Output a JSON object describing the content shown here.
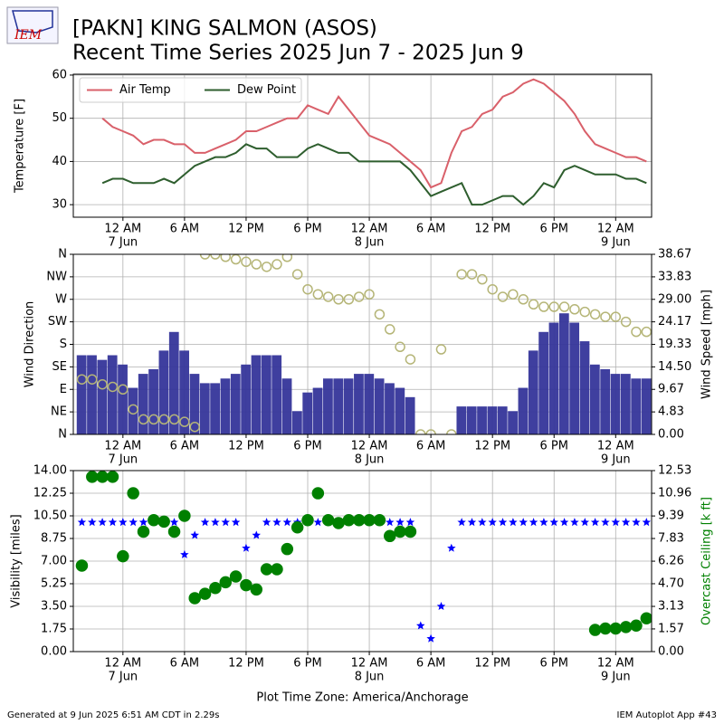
{
  "header": {
    "title": "[PAKN] KING SALMON (ASOS)",
    "subtitle": "Recent Time Series 2025 Jun 7 - 2025 Jun 9",
    "logo": "IEM"
  },
  "footer": {
    "left": "Generated at 9 Jun 2025 6:51 AM CDT in 2.29s",
    "right": "IEM Autoplot App #43"
  },
  "chart_data": [
    {
      "type": "line",
      "ylabel": "Temperature [F]",
      "grid": true,
      "legend": "upper left",
      "xlim": [
        "2025-06-06 19:10",
        "2025-06-09 03:30"
      ],
      "xticks": [
        {
          "value": "2025-06-07 00:00",
          "label": "12 AM"
        },
        {
          "value": "2025-06-07 06:00",
          "label": "6 AM"
        },
        {
          "value": "2025-06-07 12:00",
          "label": "12 PM"
        },
        {
          "value": "2025-06-07 18:00",
          "label": "6 PM"
        },
        {
          "value": "2025-06-08 00:00",
          "label": "12 AM"
        },
        {
          "value": "2025-06-08 06:00",
          "label": "6 AM"
        },
        {
          "value": "2025-06-08 12:00",
          "label": "12 PM"
        },
        {
          "value": "2025-06-08 18:00",
          "label": "6 PM"
        },
        {
          "value": "2025-06-09 00:00",
          "label": "12 AM"
        }
      ],
      "xtick_dates": [
        {
          "value": "2025-06-07 00:00",
          "label": "7 Jun"
        },
        {
          "value": "2025-06-08 00:00",
          "label": "8 Jun"
        },
        {
          "value": "2025-06-09 00:00",
          "label": "9 Jun"
        }
      ],
      "ylim": [
        27.1,
        60.2
      ],
      "yticks": [
        30,
        40,
        50,
        60
      ],
      "x": [
        "2025-06-06 22:00",
        "2025-06-06 23:00",
        "2025-06-07 00:00",
        "2025-06-07 01:00",
        "2025-06-07 02:00",
        "2025-06-07 03:00",
        "2025-06-07 04:00",
        "2025-06-07 05:00",
        "2025-06-07 06:00",
        "2025-06-07 07:00",
        "2025-06-07 08:00",
        "2025-06-07 09:00",
        "2025-06-07 10:00",
        "2025-06-07 11:00",
        "2025-06-07 12:00",
        "2025-06-07 13:00",
        "2025-06-07 14:00",
        "2025-06-07 15:00",
        "2025-06-07 16:00",
        "2025-06-07 17:00",
        "2025-06-07 18:00",
        "2025-06-07 19:00",
        "2025-06-07 20:00",
        "2025-06-07 21:00",
        "2025-06-07 22:00",
        "2025-06-07 23:00",
        "2025-06-08 00:00",
        "2025-06-08 01:00",
        "2025-06-08 02:00",
        "2025-06-08 03:00",
        "2025-06-08 04:00",
        "2025-06-08 05:00",
        "2025-06-08 06:00",
        "2025-06-08 07:00",
        "2025-06-08 08:00",
        "2025-06-08 09:00",
        "2025-06-08 10:00",
        "2025-06-08 11:00",
        "2025-06-08 12:00",
        "2025-06-08 13:00",
        "2025-06-08 14:00",
        "2025-06-08 15:00",
        "2025-06-08 16:00",
        "2025-06-08 17:00",
        "2025-06-08 18:00",
        "2025-06-08 19:00",
        "2025-06-08 20:00",
        "2025-06-08 21:00",
        "2025-06-08 22:00",
        "2025-06-08 23:00",
        "2025-06-09 00:00",
        "2025-06-09 01:00",
        "2025-06-09 02:00",
        "2025-06-09 03:00"
      ],
      "series": [
        {
          "name": "Air Temp",
          "type": "line",
          "color": "#d9606a",
          "values": [
            50,
            48,
            47,
            46,
            44,
            45,
            45,
            44,
            44,
            42,
            42,
            43,
            44,
            45,
            47,
            47,
            48,
            49,
            50,
            50,
            53,
            52,
            51,
            55,
            52,
            49,
            46,
            45,
            44,
            42,
            40,
            38,
            34,
            35,
            42,
            47,
            48,
            51,
            52,
            55,
            56,
            58,
            59,
            58,
            56,
            54,
            51,
            47,
            44,
            43,
            42,
            41,
            41,
            40
          ]
        },
        {
          "name": "Dew Point",
          "type": "line",
          "color": "#2e5e2e",
          "values": [
            35,
            36,
            36,
            35,
            35,
            35,
            36,
            35,
            37,
            39,
            40,
            41,
            41,
            42,
            44,
            43,
            43,
            41,
            41,
            41,
            43,
            44,
            43,
            42,
            42,
            40,
            40,
            40,
            40,
            40,
            38,
            35,
            32,
            33,
            34,
            35,
            30,
            30,
            31,
            32,
            32,
            30,
            32,
            35,
            34,
            38,
            39,
            38,
            37,
            37,
            37,
            36,
            36,
            35
          ]
        }
      ]
    },
    {
      "type": "combo",
      "ylabel": "Wind Direction",
      "y2label": "Wind Speed [mph]",
      "grid": true,
      "xlim": [
        "2025-06-06 19:10",
        "2025-06-09 03:30"
      ],
      "xticks": [
        {
          "value": "2025-06-07 00:00",
          "label": "12 AM"
        },
        {
          "value": "2025-06-07 06:00",
          "label": "6 AM"
        },
        {
          "value": "2025-06-07 12:00",
          "label": "12 PM"
        },
        {
          "value": "2025-06-07 18:00",
          "label": "6 PM"
        },
        {
          "value": "2025-06-08 00:00",
          "label": "12 AM"
        },
        {
          "value": "2025-06-08 06:00",
          "label": "6 AM"
        },
        {
          "value": "2025-06-08 12:00",
          "label": "12 PM"
        },
        {
          "value": "2025-06-08 18:00",
          "label": "6 PM"
        },
        {
          "value": "2025-06-09 00:00",
          "label": "12 AM"
        }
      ],
      "xtick_dates": [
        {
          "value": "2025-06-07 00:00",
          "label": "7 Jun"
        },
        {
          "value": "2025-06-08 00:00",
          "label": "8 Jun"
        },
        {
          "value": "2025-06-09 00:00",
          "label": "9 Jun"
        }
      ],
      "ylim": [
        0,
        360
      ],
      "yticks": [
        {
          "value": 0,
          "label": "N"
        },
        {
          "value": 45,
          "label": "NE"
        },
        {
          "value": 90,
          "label": "E"
        },
        {
          "value": 135,
          "label": "SE"
        },
        {
          "value": 180,
          "label": "S"
        },
        {
          "value": 225,
          "label": "SW"
        },
        {
          "value": 270,
          "label": "W"
        },
        {
          "value": 315,
          "label": "NW"
        },
        {
          "value": 360,
          "label": "N"
        }
      ],
      "y2lim": [
        0,
        38.67
      ],
      "y2ticks": [
        {
          "value": 0,
          "label": "0.00"
        },
        4.83,
        9.67,
        {
          "value": 14.5,
          "label": "14.50"
        },
        19.33,
        24.17,
        {
          "value": 29,
          "label": "29.00"
        },
        33.83,
        38.67
      ],
      "x": [
        "2025-06-06 20:00",
        "2025-06-06 21:00",
        "2025-06-06 22:00",
        "2025-06-06 23:00",
        "2025-06-07 00:00",
        "2025-06-07 01:00",
        "2025-06-07 02:00",
        "2025-06-07 03:00",
        "2025-06-07 04:00",
        "2025-06-07 05:00",
        "2025-06-07 06:00",
        "2025-06-07 07:00",
        "2025-06-07 08:00",
        "2025-06-07 09:00",
        "2025-06-07 10:00",
        "2025-06-07 11:00",
        "2025-06-07 12:00",
        "2025-06-07 13:00",
        "2025-06-07 14:00",
        "2025-06-07 15:00",
        "2025-06-07 16:00",
        "2025-06-07 17:00",
        "2025-06-07 18:00",
        "2025-06-07 19:00",
        "2025-06-07 20:00",
        "2025-06-07 21:00",
        "2025-06-07 22:00",
        "2025-06-07 23:00",
        "2025-06-08 00:00",
        "2025-06-08 01:00",
        "2025-06-08 02:00",
        "2025-06-08 03:00",
        "2025-06-08 04:00",
        "2025-06-08 05:00",
        "2025-06-08 06:00",
        "2025-06-08 07:00",
        "2025-06-08 08:00",
        "2025-06-08 09:00",
        "2025-06-08 10:00",
        "2025-06-08 11:00",
        "2025-06-08 12:00",
        "2025-06-08 13:00",
        "2025-06-08 14:00",
        "2025-06-08 15:00",
        "2025-06-08 16:00",
        "2025-06-08 17:00",
        "2025-06-08 18:00",
        "2025-06-08 19:00",
        "2025-06-08 20:00",
        "2025-06-08 21:00",
        "2025-06-08 22:00",
        "2025-06-08 23:00",
        "2025-06-09 00:00",
        "2025-06-09 01:00",
        "2025-06-09 02:00",
        "2025-06-09 03:00"
      ],
      "series": [
        {
          "type": "bar",
          "axis": "y2",
          "color": "#35359a",
          "values": [
            17,
            17,
            16,
            17,
            15,
            10,
            13,
            14,
            18,
            22,
            18,
            13,
            11,
            11,
            12,
            13,
            15,
            17,
            17,
            17,
            12,
            5,
            9,
            10,
            12,
            12,
            12,
            13,
            13,
            12,
            11,
            10,
            8,
            0,
            0,
            0,
            0,
            6,
            6,
            6,
            6,
            6,
            5,
            10,
            18,
            22,
            24,
            26,
            24,
            20,
            15,
            14,
            13,
            13,
            12,
            12
          ]
        },
        {
          "type": "scatter",
          "marker": "circle",
          "filled": false,
          "color": "#b5b577",
          "values": [
            110,
            110,
            100,
            95,
            90,
            50,
            30,
            30,
            30,
            30,
            25,
            15,
            360,
            360,
            355,
            350,
            345,
            340,
            335,
            340,
            355,
            320,
            290,
            280,
            275,
            270,
            270,
            275,
            280,
            240,
            210,
            175,
            150,
            0,
            0,
            170,
            0,
            320,
            320,
            310,
            290,
            275,
            280,
            270,
            260,
            255,
            255,
            255,
            250,
            245,
            240,
            235,
            235,
            225,
            205,
            205
          ]
        }
      ]
    },
    {
      "type": "combo",
      "ylabel": "Visibility [miles]",
      "y2label": "Overcast Ceiling [k ft]",
      "y2label_color": "#008000",
      "xlabel": "Plot Time Zone: America/Anchorage",
      "grid": true,
      "xlim": [
        "2025-06-06 19:10",
        "2025-06-09 03:30"
      ],
      "xticks": [
        {
          "value": "2025-06-07 00:00",
          "label": "12 AM"
        },
        {
          "value": "2025-06-07 06:00",
          "label": "6 AM"
        },
        {
          "value": "2025-06-07 12:00",
          "label": "12 PM"
        },
        {
          "value": "2025-06-07 18:00",
          "label": "6 PM"
        },
        {
          "value": "2025-06-08 00:00",
          "label": "12 AM"
        },
        {
          "value": "2025-06-08 06:00",
          "label": "6 AM"
        },
        {
          "value": "2025-06-08 12:00",
          "label": "12 PM"
        },
        {
          "value": "2025-06-08 18:00",
          "label": "6 PM"
        },
        {
          "value": "2025-06-09 00:00",
          "label": "12 AM"
        }
      ],
      "xtick_dates": [
        {
          "value": "2025-06-07 00:00",
          "label": "7 Jun"
        },
        {
          "value": "2025-06-08 00:00",
          "label": "8 Jun"
        },
        {
          "value": "2025-06-09 00:00",
          "label": "9 Jun"
        }
      ],
      "ylim": [
        0,
        14
      ],
      "yticks": [
        {
          "value": 0,
          "label": "0.00"
        },
        1.75,
        {
          "value": 3.5,
          "label": "3.50"
        },
        5.25,
        {
          "value": 7,
          "label": "7.00"
        },
        8.75,
        {
          "value": 10.5,
          "label": "10.50"
        },
        12.25,
        {
          "value": 14,
          "label": "14.00"
        }
      ],
      "y2lim": [
        0,
        12.53
      ],
      "y2ticks": [
        {
          "value": 0,
          "label": "0.00"
        },
        1.57,
        3.13,
        {
          "value": 4.7,
          "label": "4.70"
        },
        6.26,
        7.83,
        9.39,
        10.96,
        12.53
      ],
      "x": [
        "2025-06-06 20:00",
        "2025-06-06 21:00",
        "2025-06-06 22:00",
        "2025-06-06 23:00",
        "2025-06-07 00:00",
        "2025-06-07 01:00",
        "2025-06-07 02:00",
        "2025-06-07 03:00",
        "2025-06-07 04:00",
        "2025-06-07 05:00",
        "2025-06-07 06:00",
        "2025-06-07 07:00",
        "2025-06-07 08:00",
        "2025-06-07 09:00",
        "2025-06-07 10:00",
        "2025-06-07 11:00",
        "2025-06-07 12:00",
        "2025-06-07 13:00",
        "2025-06-07 14:00",
        "2025-06-07 15:00",
        "2025-06-07 16:00",
        "2025-06-07 17:00",
        "2025-06-07 18:00",
        "2025-06-07 19:00",
        "2025-06-07 20:00",
        "2025-06-07 21:00",
        "2025-06-07 22:00",
        "2025-06-07 23:00",
        "2025-06-08 00:00",
        "2025-06-08 01:00",
        "2025-06-08 02:00",
        "2025-06-08 03:00",
        "2025-06-08 04:00",
        "2025-06-08 05:00",
        "2025-06-08 06:00",
        "2025-06-08 07:00",
        "2025-06-08 08:00",
        "2025-06-08 09:00",
        "2025-06-08 10:00",
        "2025-06-08 11:00",
        "2025-06-08 12:00",
        "2025-06-08 13:00",
        "2025-06-08 14:00",
        "2025-06-08 15:00",
        "2025-06-08 16:00",
        "2025-06-08 17:00",
        "2025-06-08 18:00",
        "2025-06-08 19:00",
        "2025-06-08 20:00",
        "2025-06-08 21:00",
        "2025-06-08 22:00",
        "2025-06-08 23:00",
        "2025-06-09 00:00",
        "2025-06-09 01:00",
        "2025-06-09 02:00",
        "2025-06-09 03:00"
      ],
      "series": [
        {
          "type": "scatter",
          "marker": "star",
          "filled": true,
          "color": "#0000ff",
          "values": [
            10,
            10,
            10,
            10,
            10,
            10,
            10,
            10,
            10,
            10,
            7.5,
            9,
            10,
            10,
            10,
            10,
            8,
            9,
            10,
            10,
            10,
            10,
            10,
            10,
            10,
            10,
            10,
            10,
            10,
            10,
            10,
            10,
            10,
            2,
            1,
            3.5,
            8,
            10,
            10,
            10,
            10,
            10,
            10,
            10,
            10,
            10,
            10,
            10,
            10,
            10,
            10,
            10,
            10,
            10,
            10,
            10
          ]
        },
        {
          "type": "scatter",
          "marker": "circle",
          "filled": true,
          "axis": "y2",
          "color": "#008000",
          "values": [
            5.95,
            12.1,
            12.1,
            12.1,
            6.6,
            10.96,
            8.3,
            9.1,
            9.0,
            8.3,
            9.4,
            3.7,
            4.0,
            4.4,
            4.8,
            5.2,
            4.6,
            4.3,
            5.7,
            5.7,
            7.1,
            8.6,
            9.1,
            10.96,
            9.1,
            8.9,
            9.1,
            9.1,
            9.1,
            9.1,
            8.0,
            8.3,
            8.3,
            null,
            null,
            null,
            null,
            null,
            null,
            null,
            null,
            null,
            null,
            null,
            null,
            null,
            null,
            null,
            null,
            null,
            1.5,
            1.6,
            1.6,
            1.7,
            1.8,
            2.3
          ]
        }
      ]
    }
  ]
}
